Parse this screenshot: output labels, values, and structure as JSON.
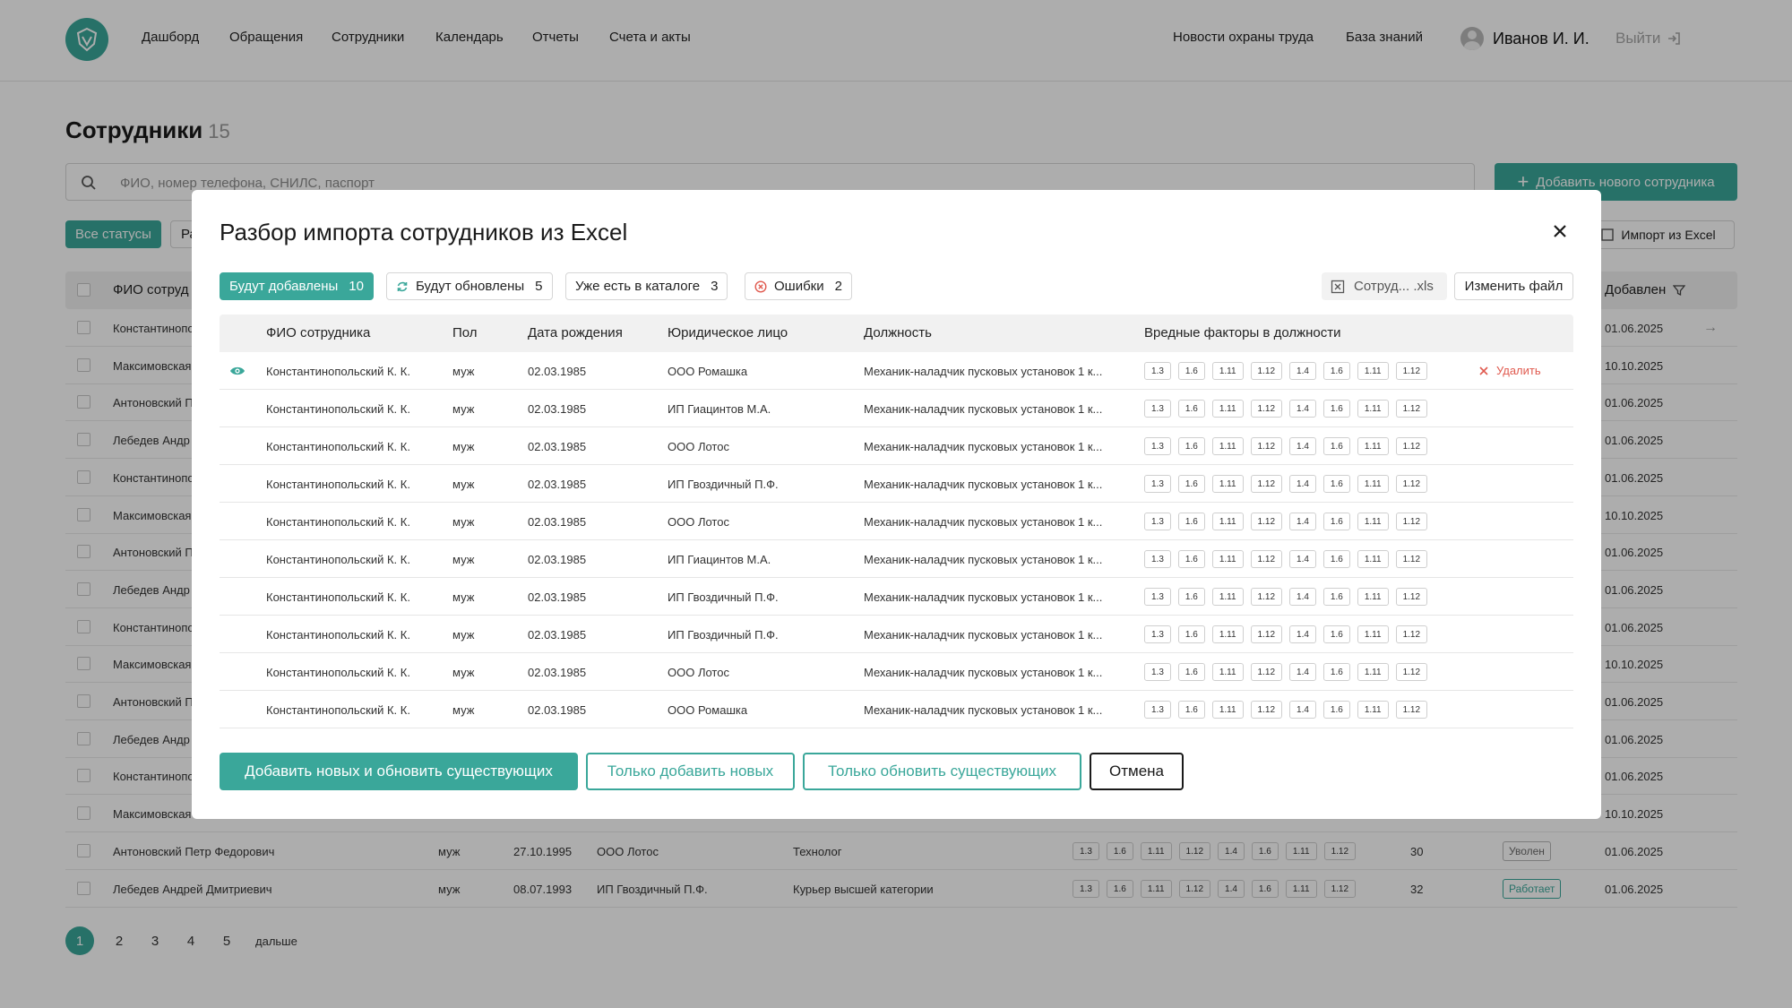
{
  "nav": {
    "links": [
      "Дашборд",
      "Обращения",
      "Сотрудники",
      "Календарь",
      "Отчеты",
      "Счета и акты",
      "Новости охраны труда",
      "База знаний"
    ],
    "user": "Иванов И. И.",
    "logout": "Выйти"
  },
  "page": {
    "title": "Сотрудники",
    "count": "15",
    "search_placeholder": "ФИО, номер телефона, СНИЛС, паспорт",
    "add_button": "Добавить нового сотрудника",
    "import_button": "Импорт из Excel",
    "status_all": "Все статусы",
    "status_other": "Ра",
    "col_name": "ФИО сотруд",
    "col_added": "Добавлен",
    "rows": [
      {
        "name": "Константинопо",
        "date": "01.06.2025"
      },
      {
        "name": "Максимовская",
        "date": "10.10.2025"
      },
      {
        "name": "Антоновский П",
        "date": "01.06.2025"
      },
      {
        "name": "Лебедев Андр",
        "date": "01.06.2025"
      },
      {
        "name": "Константинопо",
        "date": "01.06.2025"
      },
      {
        "name": "Максимовская",
        "date": "10.10.2025"
      },
      {
        "name": "Антоновский П",
        "date": "01.06.2025"
      },
      {
        "name": "Лебедев Андр",
        "date": "01.06.2025"
      },
      {
        "name": "Константинопо",
        "date": "01.06.2025"
      },
      {
        "name": "Максимовская",
        "date": "10.10.2025"
      },
      {
        "name": "Антоновский П",
        "date": "01.06.2025"
      },
      {
        "name": "Лебедев Андр",
        "date": "01.06.2025"
      },
      {
        "name": "Константинопо",
        "date": "01.06.2025"
      },
      {
        "name": "Максимовская",
        "date": "10.10.2025"
      }
    ],
    "full_rows": [
      {
        "name": "Антоновский Петр Федорович",
        "sex": "муж",
        "birth": "27.10.1995",
        "org": "ООО Лотос",
        "position": "Технолог",
        "num": "30",
        "status": "Уволен",
        "date": "01.06.2025"
      },
      {
        "name": "Лебедев Андрей Дмитриевич",
        "sex": "муж",
        "birth": "08.07.1993",
        "org": "ИП Гвоздичный П.Ф.",
        "position": "Курьер высшей категории",
        "num": "32",
        "status": "Работает",
        "date": "01.06.2025"
      }
    ],
    "factors": [
      "1.3",
      "1.6",
      "1.11",
      "1.12",
      "1.4",
      "1.6",
      "1.11",
      "1.12"
    ],
    "pages": [
      "1",
      "2",
      "3",
      "4",
      "5"
    ],
    "more": "дальше"
  },
  "modal": {
    "title": "Разбор импорта сотрудников из Excel",
    "filters": [
      {
        "label": "Будут добавлены",
        "count": "10"
      },
      {
        "label": "Будут обновлены",
        "count": "5"
      },
      {
        "label": "Уже есть в каталоге",
        "count": "3"
      },
      {
        "label": "Ошибки",
        "count": "2"
      }
    ],
    "file_name": "Сотруд... .xls",
    "change_file": "Изменить файл",
    "columns": {
      "name": "ФИО сотрудника",
      "sex": "Пол",
      "birth": "Дата рождения",
      "org": "Юридическое лицо",
      "position": "Должность",
      "factors": "Вредные факторы в должности"
    },
    "delete_label": "Удалить",
    "rows": [
      {
        "name": "Константинопольский К. К.",
        "sex": "муж",
        "birth": "02.03.1985",
        "org": "ООО Ромашка",
        "position": "Механик-наладчик пусковых установок 1 к..."
      },
      {
        "name": "Константинопольский К. К.",
        "sex": "муж",
        "birth": "02.03.1985",
        "org": "ИП Гиацинтов М.А.",
        "position": "Механик-наладчик пусковых установок 1 к..."
      },
      {
        "name": "Константинопольский К. К.",
        "sex": "муж",
        "birth": "02.03.1985",
        "org": "ООО Лотос",
        "position": "Механик-наладчик пусковых установок 1 к..."
      },
      {
        "name": "Константинопольский К. К.",
        "sex": "муж",
        "birth": "02.03.1985",
        "org": "ИП Гвоздичный П.Ф.",
        "position": "Механик-наладчик пусковых установок 1 к..."
      },
      {
        "name": "Константинопольский К. К.",
        "sex": "муж",
        "birth": "02.03.1985",
        "org": "ООО Лотос",
        "position": "Механик-наладчик пусковых установок 1 к..."
      },
      {
        "name": "Константинопольский К. К.",
        "sex": "муж",
        "birth": "02.03.1985",
        "org": "ИП Гиацинтов М.А.",
        "position": "Механик-наладчик пусковых установок 1 к..."
      },
      {
        "name": "Константинопольский К. К.",
        "sex": "муж",
        "birth": "02.03.1985",
        "org": "ИП Гвоздичный П.Ф.",
        "position": "Механик-наладчик пусковых установок 1 к..."
      },
      {
        "name": "Константинопольский К. К.",
        "sex": "муж",
        "birth": "02.03.1985",
        "org": "ИП Гвоздичный П.Ф.",
        "position": "Механик-наладчик пусковых установок 1 к..."
      },
      {
        "name": "Константинопольский К. К.",
        "sex": "муж",
        "birth": "02.03.1985",
        "org": "ООО Лотос",
        "position": "Механик-наладчик пусковых установок 1 к..."
      },
      {
        "name": "Константинопольский К. К.",
        "sex": "муж",
        "birth": "02.03.1985",
        "org": "ООО Ромашка",
        "position": "Механик-наладчик пусковых установок 1 к..."
      }
    ],
    "factors": [
      "1.3",
      "1.6",
      "1.11",
      "1.12",
      "1.4",
      "1.6",
      "1.11",
      "1.12"
    ],
    "actions": {
      "add_and_update": "Добавить новых и обновить существующих",
      "only_add": "Только добавить новых",
      "only_update": "Только обновить существующих",
      "cancel": "Отмена"
    }
  },
  "colors": {
    "accent": "#3aa79a",
    "danger": "#e05a4f",
    "overlay": "rgba(0,0,0,0.32)"
  },
  "icons": [
    "logo-icon",
    "avatar-icon",
    "logout-icon",
    "search-icon",
    "plus-icon",
    "excel-icon",
    "filter-icon",
    "arrow-right-icon",
    "close-icon",
    "refresh-icon",
    "error-icon",
    "file-icon",
    "eye-icon",
    "delete-icon"
  ]
}
